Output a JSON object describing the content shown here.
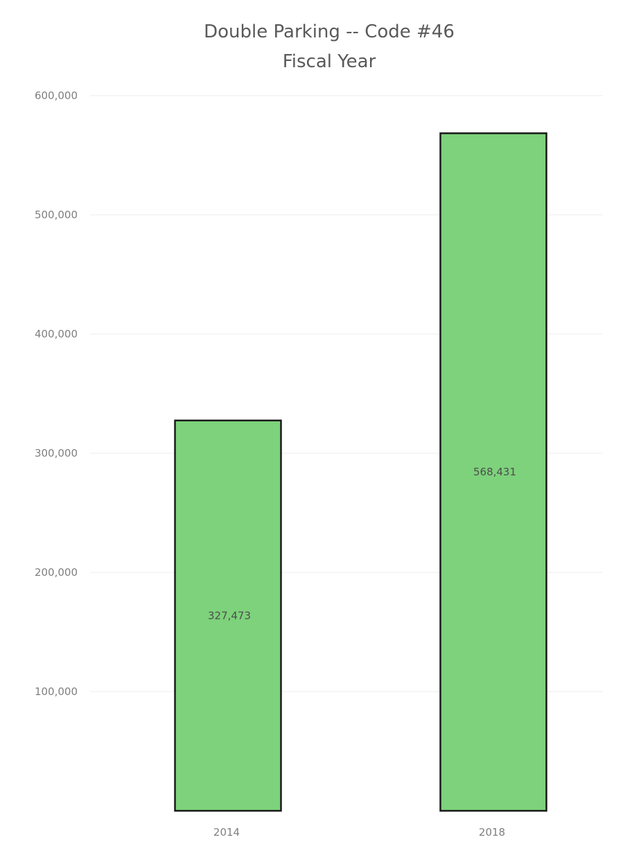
{
  "chart_data": {
    "type": "bar",
    "title": "Double Parking -- Code #46",
    "subtitle": "Fiscal Year",
    "xlabel": "",
    "ylabel": "",
    "categories": [
      "2014",
      "2018"
    ],
    "values": [
      327473,
      568431
    ],
    "data_labels": [
      "327,473",
      "568,431"
    ],
    "ylim": [
      0,
      600000
    ],
    "y_ticks": [
      100000,
      200000,
      300000,
      400000,
      500000,
      600000
    ],
    "y_tick_labels": [
      "100,000",
      "200,000",
      "300,000",
      "400,000",
      "500,000",
      "600,000"
    ],
    "grid": true,
    "legend": "none",
    "bar_color": "#7dd27b",
    "bar_edge_color": "#1a1a1a"
  }
}
